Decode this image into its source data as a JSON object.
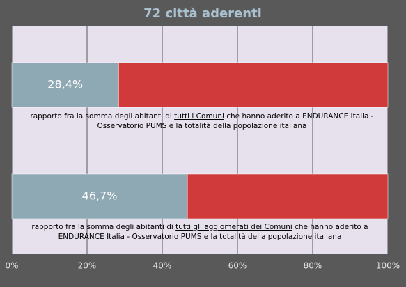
{
  "chart_data": {
    "type": "stacked_barh",
    "title": "72 città aderenti",
    "categories": [
      {
        "before": "rapporto fra la somma degli abitanti di ",
        "underlined": "tutti i Comuni",
        "after": " che hanno aderito a ENDURANCE Italia - Osservatorio PUMS e la totalità della popolazione italiana"
      },
      {
        "before": "rapporto fra la somma degli abitanti di ",
        "underlined": "tutti gli agglomerati dei Comuni",
        "after": " che hanno aderito a ENDURANCE Italia - Osservatorio PUMS e la totalità della popolazione italiana"
      }
    ],
    "series": [
      {
        "color": "#8ea9b4",
        "values": [
          28.4,
          46.7
        ],
        "value_labels": [
          "28,4%",
          "46,7%"
        ]
      },
      {
        "color": "#d03a3a",
        "values": [
          71.6,
          53.3
        ]
      }
    ],
    "xlim": [
      0,
      100
    ],
    "xticks": [
      {
        "value": 0,
        "label": "0%"
      },
      {
        "value": 20,
        "label": "20%"
      },
      {
        "value": 40,
        "label": "40%"
      },
      {
        "value": 60,
        "label": "60%"
      },
      {
        "value": 80,
        "label": "80%"
      },
      {
        "value": 100,
        "label": "100%"
      }
    ],
    "grid": true
  }
}
